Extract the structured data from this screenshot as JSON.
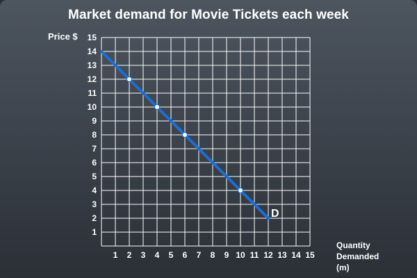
{
  "chart_data": {
    "type": "line",
    "title": "Market demand for Movie Tickets each week",
    "ylabel": "Price $",
    "xlabel_lines": [
      "Quantity",
      "Demanded",
      "(m)"
    ],
    "xlim": [
      0,
      15
    ],
    "ylim": [
      0,
      15
    ],
    "x_ticks": [
      1,
      2,
      3,
      4,
      5,
      6,
      7,
      8,
      9,
      10,
      11,
      12,
      13,
      14,
      15
    ],
    "y_ticks": [
      1,
      2,
      3,
      4,
      5,
      6,
      7,
      8,
      9,
      10,
      11,
      12,
      13,
      14,
      15
    ],
    "grid": true,
    "series": [
      {
        "name": "D",
        "x": [
          0,
          12
        ],
        "y": [
          14,
          2
        ],
        "color": "#1a6fd6"
      }
    ],
    "points": [
      {
        "x": 2,
        "y": 12
      },
      {
        "x": 4,
        "y": 10
      },
      {
        "x": 6,
        "y": 8
      },
      {
        "x": 10,
        "y": 4
      }
    ],
    "point_color": "#ffffff",
    "grid_color": "#ffffff"
  }
}
